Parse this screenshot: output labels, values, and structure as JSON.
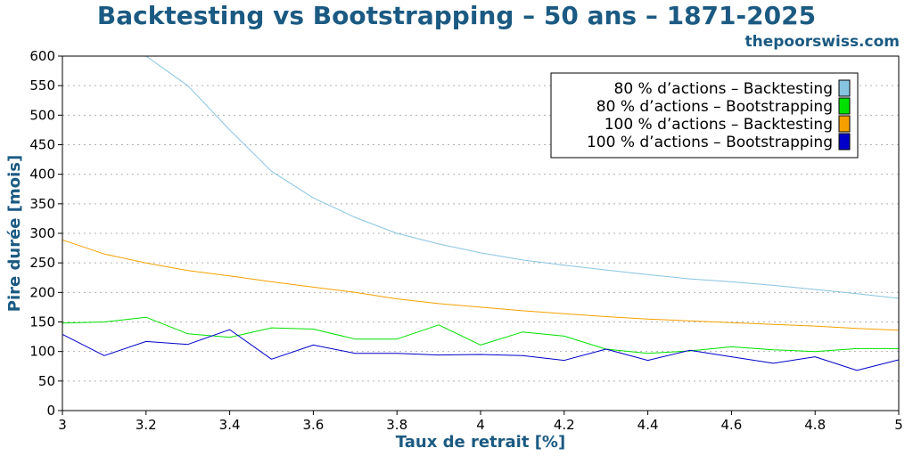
{
  "chart_data": {
    "type": "line",
    "title": "Backtesting vs Bootstrapping – 50 ans – 1871-2025",
    "source": "thepoorswiss.com",
    "xlabel": "Taux de retrait [%]",
    "ylabel": "Pire durée [mois]",
    "xlim": [
      3,
      5
    ],
    "ylim": [
      0,
      600
    ],
    "xticks": [
      "3",
      "3.2",
      "3.4",
      "3.6",
      "3.8",
      "4",
      "4.2",
      "4.4",
      "4.6",
      "4.8",
      "5"
    ],
    "yticks": [
      "0",
      "50",
      "100",
      "150",
      "200",
      "250",
      "300",
      "350",
      "400",
      "450",
      "500",
      "550",
      "600"
    ],
    "grid": true,
    "legend_position": "top-right",
    "x": [
      3.0,
      3.1,
      3.2,
      3.3,
      3.4,
      3.5,
      3.6,
      3.7,
      3.8,
      3.9,
      4.0,
      4.1,
      4.2,
      4.3,
      4.4,
      4.5,
      4.6,
      4.7,
      4.8,
      4.9,
      5.0
    ],
    "series": [
      {
        "name": "80 % d’actions – Backtesting",
        "color": "#87c4e0",
        "values": [
          600,
          600,
          600,
          550,
          475,
          405,
          360,
          327,
          300,
          282,
          267,
          255,
          246,
          238,
          230,
          223,
          218,
          212,
          205,
          198,
          190
        ]
      },
      {
        "name": "80 % d’actions – Bootstrapping",
        "color": "#00e000",
        "values": [
          148,
          150,
          158,
          130,
          124,
          140,
          138,
          121,
          121,
          145,
          111,
          133,
          126,
          104,
          97,
          101,
          108,
          103,
          100,
          105,
          105
        ]
      },
      {
        "name": "100 % d’actions – Backtesting",
        "color": "#f5a000",
        "values": [
          289,
          265,
          250,
          237,
          228,
          218,
          209,
          200,
          189,
          181,
          175,
          169,
          164,
          159,
          155,
          152,
          149,
          146,
          143,
          139,
          136
        ]
      },
      {
        "name": "100 % d’actions – Bootstrapping",
        "color": "#0000c8",
        "values": [
          129,
          93,
          117,
          112,
          137,
          87,
          111,
          97,
          97,
          94,
          95,
          93,
          85,
          104,
          85,
          102,
          91,
          80,
          91,
          68,
          86
        ]
      }
    ]
  }
}
